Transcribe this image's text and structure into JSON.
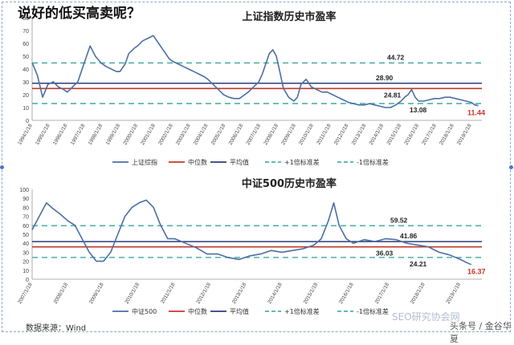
{
  "page": {
    "headline": "说好的低买高卖呢？",
    "source": "数据来源：Wind",
    "watermark": "SEO研究协会网",
    "credit": "头条号 / 金谷华夏"
  },
  "chart_data": [
    {
      "type": "line",
      "title": "上证指数历史市盈率",
      "ylim": [
        0,
        80
      ],
      "yticks": [
        0,
        10,
        20,
        30,
        40,
        50,
        60,
        70,
        80
      ],
      "grid": false,
      "legend_position": "bottom",
      "x_tick_labels": [
        "1994/1/18",
        "1995/1/18",
        "1996/1/18",
        "1997/1/18",
        "1998/1/18",
        "1999/1/18",
        "2000/1/18",
        "2001/1/18",
        "2002/1/18",
        "2003/1/18",
        "2004/1/18",
        "2005/1/18",
        "2006/1/18",
        "2007/1/18",
        "2008/1/18",
        "2009/1/18",
        "2010/1/18",
        "2011/1/18",
        "2012/1/18",
        "2013/1/18",
        "2014/1/18",
        "2015/1/18",
        "2016/1/18",
        "2017/1/18",
        "2018/1/18",
        "2019/1/18"
      ],
      "series": [
        {
          "name": "上证综指",
          "color": "#4a6fa5",
          "x": [
            1994.0,
            1994.3,
            1994.6,
            1994.9,
            1995.2,
            1995.5,
            1995.8,
            1996.0,
            1996.3,
            1996.6,
            1996.9,
            1997.1,
            1997.3,
            1997.6,
            1997.9,
            1998.2,
            1998.5,
            1998.8,
            1999.0,
            1999.3,
            1999.5,
            1999.8,
            2000.0,
            2000.3,
            2000.6,
            2000.9,
            2001.2,
            2001.5,
            2001.8,
            2002.0,
            2002.3,
            2002.6,
            2002.9,
            2003.2,
            2003.5,
            2003.8,
            2004.0,
            2004.3,
            2004.6,
            2004.9,
            2005.2,
            2005.5,
            2005.8,
            2006.0,
            2006.3,
            2006.6,
            2006.9,
            2007.1,
            2007.3,
            2007.5,
            2007.7,
            2007.9,
            2008.1,
            2008.3,
            2008.6,
            2008.9,
            2009.1,
            2009.3,
            2009.6,
            2009.9,
            2010.2,
            2010.5,
            2010.8,
            2011.1,
            2011.4,
            2011.7,
            2012.0,
            2012.3,
            2012.6,
            2012.9,
            2013.2,
            2013.5,
            2013.8,
            2014.1,
            2014.4,
            2014.7,
            2015.0,
            2015.2,
            2015.4,
            2015.6,
            2015.8,
            2016.0,
            2016.3,
            2016.6,
            2016.9,
            2017.2,
            2017.5,
            2017.8,
            2018.1,
            2018.4,
            2018.7,
            2019.0,
            2019.2,
            2019.4
          ],
          "values": [
            45,
            35,
            18,
            28,
            30,
            26,
            24,
            22,
            26,
            30,
            42,
            50,
            58,
            50,
            45,
            42,
            40,
            38,
            38,
            44,
            52,
            56,
            58,
            62,
            64,
            66,
            60,
            54,
            48,
            46,
            44,
            42,
            40,
            38,
            36,
            34,
            32,
            28,
            24,
            20,
            18,
            17,
            17,
            19,
            22,
            26,
            30,
            36,
            44,
            52,
            55,
            50,
            38,
            25,
            18,
            15,
            18,
            28,
            32,
            26,
            24,
            22,
            22,
            20,
            18,
            16,
            14,
            13,
            12,
            12,
            13,
            12,
            11,
            10,
            10,
            12,
            15,
            18,
            20,
            24,
            18,
            15,
            15,
            16,
            17,
            17,
            18,
            18,
            17,
            16,
            15,
            14,
            12,
            11.44
          ]
        }
      ],
      "reference_lines": [
        {
          "name": "中位数",
          "value": 24.81,
          "color": "#c0392b",
          "style": "solid",
          "label": "24.81"
        },
        {
          "name": "平均值",
          "value": 28.9,
          "color": "#2c3e7a",
          "style": "solid",
          "label": "28.90"
        },
        {
          "name": "+1倍标准差",
          "value": 44.72,
          "color": "#4fb0a8",
          "style": "dashed",
          "label": "44.72"
        },
        {
          "name": "-1倍标准差",
          "value": 13.08,
          "color": "#4fb0a8",
          "style": "dashed",
          "label": "13.08"
        }
      ],
      "end_label": {
        "value": 11.44,
        "label": "11.44",
        "color": "#d0312d"
      },
      "legend": [
        "上证综指",
        "中位数",
        "平均值",
        "+1倍标准差",
        "-1倍标准差"
      ]
    },
    {
      "type": "line",
      "title": "中证500历史市盈率",
      "ylim": [
        0,
        100
      ],
      "yticks": [
        0,
        10,
        20,
        30,
        40,
        50,
        60,
        70,
        80,
        90,
        100
      ],
      "grid": false,
      "legend_position": "bottom",
      "x_tick_labels": [
        "2007/1/18",
        "2008/1/18",
        "2009/1/18",
        "2010/1/18",
        "2011/1/18",
        "2012/1/18",
        "2013/1/18",
        "2014/1/18",
        "2015/1/18",
        "2016/1/18",
        "2017/1/18",
        "2018/1/18",
        "2019/1/18"
      ],
      "series": [
        {
          "name": "中证500",
          "color": "#4a6fa5",
          "x": [
            2007.0,
            2007.2,
            2007.4,
            2007.6,
            2007.8,
            2008.0,
            2008.2,
            2008.4,
            2008.6,
            2008.8,
            2009.0,
            2009.2,
            2009.4,
            2009.6,
            2009.8,
            2010.0,
            2010.2,
            2010.4,
            2010.6,
            2010.8,
            2011.0,
            2011.3,
            2011.6,
            2011.9,
            2012.2,
            2012.5,
            2012.8,
            2013.1,
            2013.4,
            2013.7,
            2014.0,
            2014.3,
            2014.6,
            2014.9,
            2015.1,
            2015.3,
            2015.45,
            2015.6,
            2015.8,
            2016.0,
            2016.3,
            2016.6,
            2016.9,
            2017.2,
            2017.5,
            2017.8,
            2018.1,
            2018.4,
            2018.7,
            2019.0,
            2019.2,
            2019.3
          ],
          "values": [
            55,
            70,
            85,
            78,
            72,
            65,
            60,
            45,
            30,
            20,
            20,
            30,
            50,
            70,
            80,
            85,
            88,
            80,
            60,
            45,
            45,
            40,
            35,
            28,
            28,
            24,
            22,
            26,
            28,
            32,
            30,
            32,
            34,
            38,
            45,
            65,
            85,
            60,
            45,
            40,
            44,
            42,
            45,
            44,
            40,
            38,
            36,
            30,
            27,
            22,
            18,
            16.37
          ]
        }
      ],
      "reference_lines": [
        {
          "name": "中位数",
          "value": 36.03,
          "color": "#c0392b",
          "style": "solid",
          "label": "36.03"
        },
        {
          "name": "平均值",
          "value": 41.86,
          "color": "#2c3e7a",
          "style": "solid",
          "label": "41.86"
        },
        {
          "name": "+1倍标准差",
          "value": 59.52,
          "color": "#4fb0a8",
          "style": "dashed",
          "label": "59.52"
        },
        {
          "name": "-1倍标准差",
          "value": 24.21,
          "color": "#4fb0a8",
          "style": "dashed",
          "label": "24.21"
        }
      ],
      "end_label": {
        "value": 16.37,
        "label": "16.37",
        "color": "#d0312d"
      },
      "legend": [
        "中证500",
        "中位数",
        "平均值",
        "+1倍标准差",
        "-1倍标准差"
      ]
    }
  ]
}
